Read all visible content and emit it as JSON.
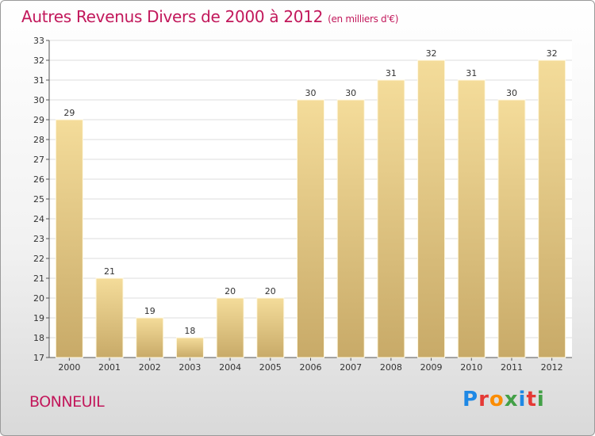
{
  "header": {
    "title": "Autres Revenus Divers de 2000 à 2012",
    "unit": "(en milliers d'€)"
  },
  "footer": {
    "city": "BONNEUIL",
    "logo_letters": [
      "P",
      "r",
      "o",
      "x",
      "i",
      "t",
      "i"
    ]
  },
  "colors": {
    "title": "#c2185b",
    "bar_light": "#f4dc9a",
    "bar_dark": "#c8aa68",
    "logo": [
      "#1e88e5",
      "#e53935",
      "#fb8c00",
      "#43a047",
      "#1e88e5",
      "#e53935",
      "#43a047"
    ]
  },
  "chart_data": {
    "type": "bar",
    "title": "Autres Revenus Divers de 2000 à 2012",
    "subtitle": "(en milliers d'€)",
    "categories": [
      "2000",
      "2001",
      "2002",
      "2003",
      "2004",
      "2005",
      "2006",
      "2007",
      "2008",
      "2009",
      "2010",
      "2011",
      "2012"
    ],
    "values": [
      29,
      21,
      19,
      18,
      20,
      20,
      30,
      30,
      31,
      32,
      31,
      30,
      32
    ],
    "ylim": [
      17,
      33
    ],
    "yticks": [
      17,
      18,
      19,
      20,
      21,
      22,
      23,
      24,
      25,
      26,
      27,
      28,
      29,
      30,
      31,
      32,
      33
    ],
    "xlabel": "",
    "ylabel": "",
    "grid": true,
    "legend": "none"
  }
}
